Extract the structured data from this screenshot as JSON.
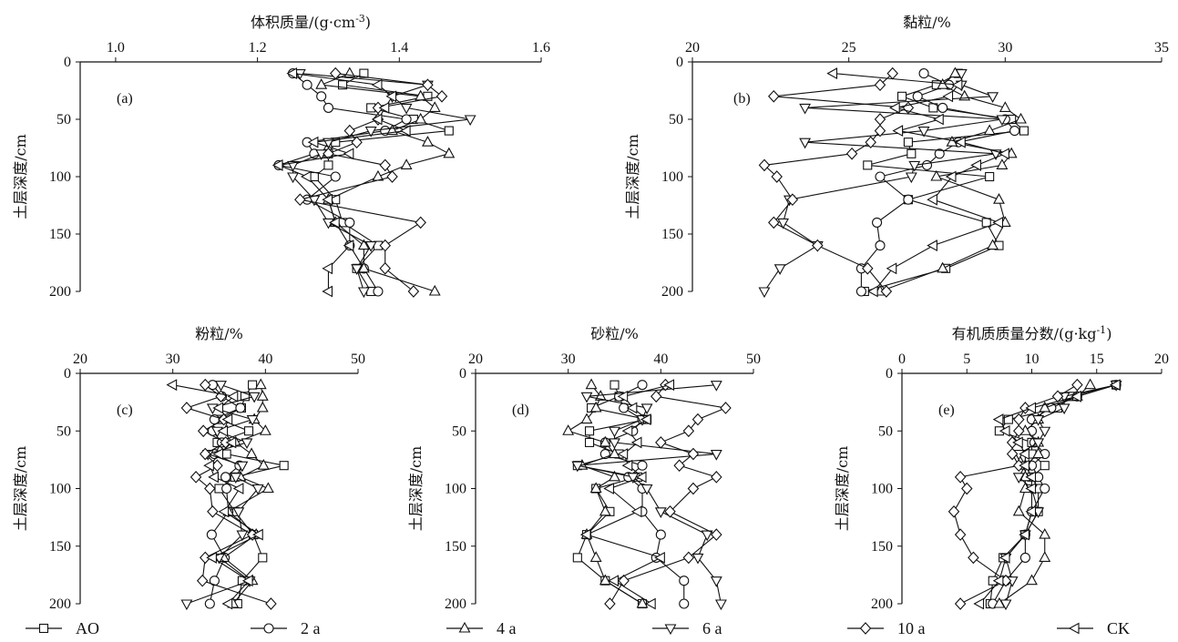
{
  "legend": [
    {
      "name": "AO",
      "marker": "square"
    },
    {
      "name": "2 a",
      "marker": "circle"
    },
    {
      "name": "4 a",
      "marker": "triangle-up"
    },
    {
      "name": "6 a",
      "marker": "triangle-down"
    },
    {
      "name": "10 a",
      "marker": "diamond"
    },
    {
      "name": "CK",
      "marker": "triangle-left"
    }
  ],
  "chart_data": [
    {
      "type": "line",
      "panel_label": "(a)",
      "xlabel": "体积质量/(g·cm",
      "xlabel_sup": "-3",
      "xlabel_end": ")",
      "ylabel": "土层深度/cm",
      "xlim": [
        0.95,
        1.6
      ],
      "xticks": [
        1.0,
        1.2,
        1.4,
        1.6
      ],
      "xtick_labels": [
        "1.0",
        "1.2",
        "1.4",
        "1.6"
      ],
      "ylim": [
        0,
        200
      ],
      "yticks": [
        0,
        50,
        100,
        150,
        200
      ],
      "ytick_labels": [
        "0",
        "50",
        "100",
        "150",
        "200"
      ],
      "depths": [
        10,
        20,
        30,
        40,
        50,
        60,
        70,
        80,
        90,
        100,
        120,
        140,
        160,
        180,
        200
      ],
      "series": [
        {
          "name": "AO",
          "marker": "square",
          "values": [
            1.35,
            1.32,
            1.44,
            1.36,
            1.42,
            1.47,
            1.31,
            1.3,
            1.3,
            1.28,
            1.31,
            1.32,
            1.37,
            1.34,
            1.36
          ]
        },
        {
          "name": "2 a",
          "marker": "circle",
          "values": [
            1.25,
            1.27,
            1.29,
            1.3,
            1.41,
            1.38,
            1.27,
            1.28,
            1.23,
            1.31,
            1.27,
            1.33,
            1.33,
            1.35,
            1.37
          ]
        },
        {
          "name": "4 a",
          "marker": "triangle-up",
          "values": [
            1.33,
            1.29,
            1.43,
            1.45,
            1.43,
            1.39,
            1.44,
            1.47,
            1.41,
            1.37,
            1.3,
            1.31,
            1.35,
            1.35,
            1.45
          ]
        },
        {
          "name": "6 a",
          "marker": "triangle-down",
          "values": [
            1.26,
            1.44,
            1.39,
            1.41,
            1.5,
            1.36,
            1.3,
            1.29,
            1.25,
            1.25,
            1.28,
            1.3,
            1.36,
            1.34,
            1.35
          ]
        },
        {
          "name": "10 a",
          "marker": "diamond",
          "values": [
            1.31,
            1.44,
            1.46,
            1.37,
            1.37,
            1.33,
            1.34,
            1.3,
            1.38,
            1.39,
            1.26,
            1.43,
            1.38,
            1.38,
            1.42
          ]
        },
        {
          "name": "CK",
          "marker": "triangle-left",
          "values": [
            1.25,
            1.37,
            1.39,
            1.38,
            1.37,
            1.41,
            1.28,
            1.33,
            1.23,
            1.27,
            1.3,
            1.31,
            1.33,
            1.3,
            1.3
          ]
        }
      ]
    },
    {
      "type": "line",
      "panel_label": "(b)",
      "xlabel": "黏粒/%",
      "ylabel": "土层深度/cm",
      "xlim": [
        20,
        35
      ],
      "xticks": [
        20,
        25,
        30,
        35
      ],
      "xtick_labels": [
        "20",
        "25",
        "30",
        "35"
      ],
      "ylim": [
        0,
        200
      ],
      "yticks": [
        0,
        50,
        100,
        150,
        200
      ],
      "ytick_labels": [
        "0",
        "50",
        "100",
        "150",
        "200"
      ],
      "depths": [
        10,
        20,
        30,
        40,
        50,
        60,
        70,
        80,
        90,
        100,
        120,
        140,
        160,
        180,
        200
      ],
      "series": [
        {
          "name": "AO",
          "marker": "square",
          "values": [
            28.5,
            27.8,
            26.7,
            27.7,
            30.2,
            30.6,
            26.9,
            27.0,
            25.6,
            29.5,
            26.9,
            29.4,
            29.8,
            28.1,
            25.5
          ]
        },
        {
          "name": "2 a",
          "marker": "circle",
          "values": [
            27.4,
            28.2,
            27.2,
            28.0,
            30.0,
            30.3,
            28.5,
            27.9,
            27.5,
            26.0,
            26.9,
            25.9,
            26.0,
            25.4,
            25.4
          ]
        },
        {
          "name": "4 a",
          "marker": "triangle-up",
          "values": [
            28.4,
            28.0,
            28.7,
            30.0,
            30.5,
            29.5,
            28.3,
            30.2,
            29.9,
            27.8,
            29.8,
            30.0,
            29.6,
            28.0,
            26.0
          ]
        },
        {
          "name": "6 a",
          "marker": "triangle-down",
          "values": [
            28.6,
            28.6,
            29.6,
            23.6,
            29.9,
            27.4,
            23.6,
            29.7,
            27.1,
            27.0,
            23.1,
            22.9,
            24.0,
            22.8,
            22.3
          ]
        },
        {
          "name": "10 a",
          "marker": "diamond",
          "values": [
            26.4,
            26.0,
            22.6,
            26.9,
            26.0,
            26.0,
            25.7,
            25.1,
            22.3,
            22.7,
            23.2,
            22.6,
            24.0,
            25.6,
            26.2
          ]
        },
        {
          "name": "CK",
          "marker": "triangle-left",
          "values": [
            24.5,
            28.5,
            28.2,
            26.5,
            27.9,
            26.6,
            28.6,
            30.0,
            29.1,
            28.3,
            27.7,
            29.8,
            27.7,
            26.4,
            25.8
          ]
        }
      ]
    },
    {
      "type": "line",
      "panel_label": "(c)",
      "xlabel": "粉粒/%",
      "ylabel": "土层深度/cm",
      "xlim": [
        20,
        50
      ],
      "xticks": [
        20,
        30,
        40,
        50
      ],
      "xtick_labels": [
        "20",
        "30",
        "40",
        "50"
      ],
      "ylim": [
        0,
        200
      ],
      "yticks": [
        0,
        50,
        100,
        150,
        200
      ],
      "ytick_labels": [
        "0",
        "50",
        "100",
        "150",
        "200"
      ],
      "depths": [
        10,
        20,
        30,
        40,
        50,
        60,
        70,
        80,
        90,
        100,
        120,
        140,
        160,
        180,
        200
      ],
      "series": [
        {
          "name": "AO",
          "marker": "square",
          "values": [
            38.6,
            37.8,
            37.4,
            35.1,
            38.2,
            34.8,
            35.8,
            42.0,
            36.7,
            35.0,
            36.7,
            38.7,
            39.7,
            37.5,
            37.0
          ]
        },
        {
          "name": "2 a",
          "marker": "circle",
          "values": [
            34.3,
            35.3,
            37.3,
            34.5,
            34.3,
            35.3,
            34.5,
            37.2,
            35.7,
            35.8,
            36.0,
            34.2,
            35.6,
            34.5,
            34.0
          ]
        },
        {
          "name": "4 a",
          "marker": "triangle-up",
          "values": [
            39.5,
            39.7,
            39.7,
            38.8,
            40.0,
            36.8,
            38.5,
            39.8,
            37.3,
            40.3,
            36.0,
            39.0,
            35.5,
            38.6,
            36.5
          ]
        },
        {
          "name": "6 a",
          "marker": "triangle-down",
          "values": [
            35.2,
            38.8,
            34.3,
            38.6,
            34.8,
            38.0,
            33.8,
            37.5,
            36.8,
            39.2,
            37.1,
            37.5,
            35.0,
            38.3,
            31.5
          ]
        },
        {
          "name": "10 a",
          "marker": "diamond",
          "values": [
            33.5,
            35.2,
            31.5,
            35.5,
            33.3,
            35.7,
            33.5,
            34.8,
            32.5,
            34.0,
            34.3,
            38.6,
            33.5,
            33.2,
            40.6
          ]
        },
        {
          "name": "CK",
          "marker": "triangle-left",
          "values": [
            30.0,
            36.6,
            35.0,
            36.0,
            35.5,
            36.4,
            35.0,
            34.0,
            34.5,
            37.2,
            35.6,
            39.3,
            34.3,
            38.2,
            36.0
          ]
        }
      ]
    },
    {
      "type": "line",
      "panel_label": "(d)",
      "xlabel": "砂粒/%",
      "ylabel": "土层深度/cm",
      "xlim": [
        20,
        50
      ],
      "xticks": [
        20,
        30,
        40,
        50
      ],
      "xtick_labels": [
        "20",
        "30",
        "40",
        "50"
      ],
      "ylim": [
        0,
        200
      ],
      "yticks": [
        0,
        50,
        100,
        150,
        200
      ],
      "ytick_labels": [
        "0",
        "50",
        "100",
        "150",
        "200"
      ],
      "depths": [
        10,
        20,
        30,
        40,
        50,
        60,
        70,
        80,
        90,
        100,
        120,
        140,
        160,
        180,
        200
      ],
      "series": [
        {
          "name": "AO",
          "marker": "square",
          "values": [
            35.0,
            35.5,
            32.5,
            38.5,
            32.3,
            32.3,
            35.5,
            31.0,
            37.5,
            33.0,
            34.5,
            32.0,
            31.0,
            34.0,
            38.0
          ]
        },
        {
          "name": "2 a",
          "marker": "circle",
          "values": [
            38.0,
            35.5,
            36.0,
            38.0,
            37.0,
            34.0,
            34.0,
            38.0,
            36.5,
            38.0,
            38.0,
            40.0,
            39.5,
            42.5,
            42.5
          ]
        },
        {
          "name": "4 a",
          "marker": "triangle-up",
          "values": [
            32.5,
            33.5,
            33.0,
            32.0,
            30.0,
            34.0,
            35.0,
            31.5,
            35.0,
            33.0,
            34.0,
            32.0,
            33.0,
            34.0,
            38.0
          ]
        },
        {
          "name": "6 a",
          "marker": "triangle-down",
          "values": [
            46.0,
            32.0,
            38.5,
            38.0,
            35.0,
            35.0,
            46.0,
            31.0,
            37.0,
            38.5,
            40.0,
            45.0,
            44.0,
            46.0,
            46.5
          ]
        },
        {
          "name": "10 a",
          "marker": "diamond",
          "values": [
            40.5,
            39.5,
            47.0,
            44.0,
            43.0,
            40.0,
            43.5,
            42.0,
            46.0,
            43.5,
            41.0,
            46.0,
            43.0,
            36.0,
            34.5
          ]
        },
        {
          "name": "CK",
          "marker": "triangle-left",
          "values": [
            41.0,
            36.0,
            37.0,
            38.5,
            36.5,
            37.5,
            36.0,
            36.5,
            38.0,
            34.5,
            37.5,
            32.0,
            40.0,
            35.0,
            39.0
          ]
        }
      ]
    },
    {
      "type": "line",
      "panel_label": "(e)",
      "xlabel": "有机质质量分数/(g·kg",
      "xlabel_sup": "-1",
      "xlabel_end": ")",
      "ylabel": "土层深度/cm",
      "xlim": [
        0,
        20
      ],
      "xticks": [
        0,
        5,
        10,
        15,
        20
      ],
      "xtick_labels": [
        "0",
        "5",
        "10",
        "15",
        "20"
      ],
      "ylim": [
        0,
        200
      ],
      "yticks": [
        0,
        50,
        100,
        150,
        200
      ],
      "ytick_labels": [
        "0",
        "50",
        "100",
        "150",
        "200"
      ],
      "depths": [
        10,
        20,
        30,
        40,
        50,
        60,
        70,
        80,
        90,
        100,
        120,
        140,
        160,
        180,
        200
      ],
      "series": [
        {
          "name": "AO",
          "marker": "square",
          "values": [
            16.5,
            13.0,
            12.0,
            8.2,
            7.5,
            10.0,
            10.0,
            11.0,
            10.0,
            10.5,
            10.5,
            9.5,
            7.8,
            7.0,
            6.8
          ]
        },
        {
          "name": "2 a",
          "marker": "circle",
          "values": [
            16.5,
            13.5,
            11.5,
            10.0,
            10.0,
            10.2,
            11.0,
            10.0,
            10.5,
            11.0,
            10.0,
            9.5,
            9.5,
            8.0,
            7.0
          ]
        },
        {
          "name": "4 a",
          "marker": "triangle-up",
          "values": [
            14.5,
            13.5,
            11.0,
            10.5,
            9.5,
            10.5,
            10.5,
            9.5,
            9.5,
            9.5,
            9.0,
            11.0,
            11.0,
            10.0,
            7.5
          ]
        },
        {
          "name": "6 a",
          "marker": "triangle-down",
          "values": [
            16.5,
            12.5,
            12.5,
            10.5,
            11.0,
            10.5,
            9.0,
            9.5,
            9.0,
            10.0,
            10.5,
            9.5,
            8.0,
            8.5,
            8.0
          ]
        },
        {
          "name": "10 a",
          "marker": "diamond",
          "values": [
            13.5,
            12.0,
            9.5,
            9.0,
            9.0,
            8.5,
            8.5,
            9.0,
            4.5,
            5.0,
            4.0,
            4.5,
            5.5,
            8.0,
            4.5
          ]
        },
        {
          "name": "CK",
          "marker": "triangle-left",
          "values": [
            16.5,
            13.5,
            10.0,
            7.5,
            8.0,
            9.0,
            9.5,
            9.5,
            10.0,
            10.0,
            10.0,
            9.5,
            8.0,
            7.5,
            6.0
          ]
        }
      ]
    }
  ]
}
